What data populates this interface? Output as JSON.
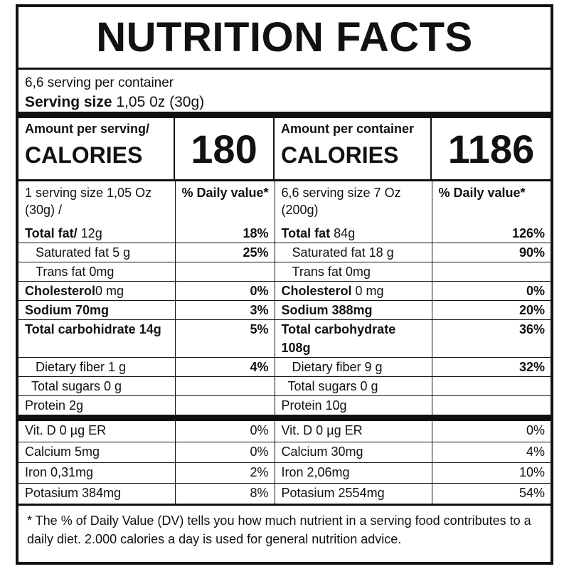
{
  "title": "NUTRITION FACTS",
  "servings_per_container": "6,6 serving per container",
  "serving_size_label": "Serving size",
  "serving_size_value": "1,05 0z (30g)",
  "calories": {
    "per_serving_label": "Amount per serving/",
    "per_serving_title": "CALORIES",
    "per_serving_value": "180",
    "per_container_label": "Amount per container",
    "per_container_title": "CALORIES",
    "per_container_value": "1186"
  },
  "header": {
    "left_desc": "1 serving size 1,05 Oz (30g) /",
    "left_dv": "% Daily value*",
    "right_desc": "6,6 serving size 7 Oz (200g)",
    "right_dv": "% Daily value*"
  },
  "nutrients": [
    {
      "l_name": "Total fat/",
      "l_amt": " 12g",
      "l_pct": "18%",
      "r_name": "Total fat",
      "r_amt": " 84g",
      "r_pct": "126%"
    },
    {
      "l_name": "Saturated fat 5 g",
      "l_amt": "",
      "l_pct": "25%",
      "r_name": "Saturated fat 18 g",
      "r_amt": "",
      "r_pct": "90%"
    },
    {
      "l_name": "Trans fat 0mg",
      "l_amt": "",
      "l_pct": "",
      "r_name": "Trans fat 0mg",
      "r_amt": "",
      "r_pct": ""
    },
    {
      "l_name": "Cholesterol",
      "l_amt": "0 mg",
      "l_pct": "0%",
      "r_name": "Cholesterol",
      "r_amt": " 0 mg",
      "r_pct": "0%"
    },
    {
      "l_name": "Sodium  70mg",
      "l_amt": "",
      "l_pct": "3%",
      "r_name": "Sodium  388mg",
      "r_amt": "",
      "r_pct": "20%"
    },
    {
      "l_name": "Total carbohidrate 14g",
      "l_amt": "",
      "l_pct": "5%",
      "r_name": "Total carbohydrate 108g",
      "r_amt": "",
      "r_pct": "36%"
    },
    {
      "l_name": "Dietary fiber 1 g",
      "l_amt": "",
      "l_pct": "4%",
      "r_name": "Dietary fiber 9 g",
      "r_amt": "",
      "r_pct": "32%"
    },
    {
      "l_name": "Total sugars  0 g",
      "l_amt": "",
      "l_pct": "",
      "r_name": "Total sugars 0 g",
      "r_amt": "",
      "r_pct": ""
    },
    {
      "l_name": "Protein 2g",
      "l_amt": "",
      "l_pct": "",
      "r_name": "Protein 10g",
      "r_amt": "",
      "r_pct": ""
    }
  ],
  "vitamins": [
    {
      "l_name": "Vit. D  0 µg ER",
      "l_pct": "0%",
      "r_name": "Vit. D  0 µg ER",
      "r_pct": "0%"
    },
    {
      "l_name": "Calcium  5mg",
      "l_pct": "0%",
      "r_name": "Calcium  30mg",
      "r_pct": "4%"
    },
    {
      "l_name": "Iron 0,31mg",
      "l_pct": "2%",
      "r_name": "Iron 2,06mg",
      "r_pct": "10%"
    },
    {
      "l_name": "Potasium 384mg",
      "l_pct": "8%",
      "r_name": "Potasium 2554mg",
      "r_pct": "54%"
    }
  ],
  "footnote": "* The % of Daily Value (DV) tells you how much nutrient in a serving food contributes to a daily diet. 2.000 calories a day is used for general nutrition advice."
}
